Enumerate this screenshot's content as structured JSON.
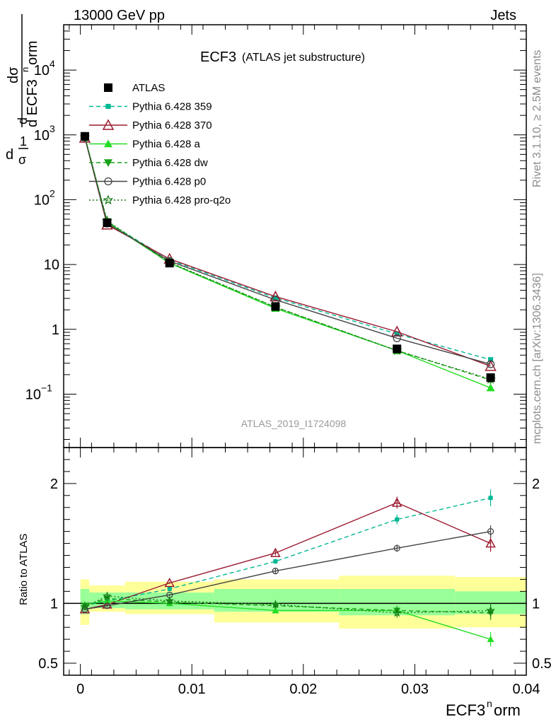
{
  "header": {
    "energy": "13000 GeV pp",
    "process": "Jets",
    "rivet": "Rivet 3.1.10, ≥ 2.5M events",
    "mcplots": "mcplots.cern.ch [arXiv:1306.3436]",
    "analysis": "ATLAS_2019_I1724098"
  },
  "title": {
    "main": "ECF3",
    "sub": "(ATLAS jet substructure)"
  },
  "labels": {
    "ylabel_num": "dσ",
    "ylabel_den": "d ECF3",
    "ylabel_sup": "n",
    "ylabel_tail": "orm",
    "ylabel_pre": "d",
    "ylabel_one": "1",
    "ylabel_sig": "σ",
    "ratio_ylabel": "Ratio to ATLAS",
    "xlabel_main": "ECF3",
    "xlabel_sup": "n",
    "xlabel_tail": "orm"
  },
  "chart_data": [
    {
      "type": "line",
      "panel": "main",
      "yscale": "log",
      "xlim": [
        -0.0015,
        0.04
      ],
      "ylim": [
        0.015,
        50000
      ],
      "x_ticks": [
        "0",
        "0.01",
        "0.02",
        "0.03",
        "0.04"
      ],
      "y_ticks": [
        {
          "v": 0.1,
          "base": "10",
          "exp": "−1"
        },
        {
          "v": 1,
          "base": "1",
          "exp": ""
        },
        {
          "v": 10,
          "base": "10",
          "exp": ""
        },
        {
          "v": 100,
          "base": "10",
          "exp": "2"
        },
        {
          "v": 1000,
          "base": "10",
          "exp": "3"
        },
        {
          "v": 10000,
          "base": "10",
          "exp": "4"
        }
      ],
      "x": [
        0.0004,
        0.0024,
        0.008,
        0.0175,
        0.0284,
        0.0368
      ],
      "series": [
        {
          "name": "ATLAS",
          "color": "#000000",
          "marker": "square",
          "dash": "none",
          "values": [
            950,
            44,
            10.5,
            2.25,
            0.5,
            0.18
          ]
        },
        {
          "name": "Pythia 6.428 359",
          "color": "#00b894",
          "marker": "smallsquare",
          "dash": "6,4",
          "values": [
            930,
            45,
            11.8,
            3.05,
            0.85,
            0.34
          ]
        },
        {
          "name": "Pythia 6.428 370",
          "color": "#9b1b30",
          "marker": "opentriangle",
          "dash": "none",
          "values": [
            900,
            41,
            12.2,
            3.2,
            0.92,
            0.27
          ]
        },
        {
          "name": "Pythia 6.428 a",
          "color": "#22dd22",
          "marker": "triangle",
          "dash": "none",
          "values": [
            940,
            45,
            10.5,
            2.1,
            0.47,
            0.125
          ]
        },
        {
          "name": "Pythia 6.428 dw",
          "color": "#19a019",
          "marker": "triangledown",
          "dash": "6,4",
          "values": [
            935,
            46,
            10.6,
            2.2,
            0.47,
            0.165
          ]
        },
        {
          "name": "Pythia 6.428 p0",
          "color": "#444444",
          "marker": "opencircle",
          "dash": "none",
          "values": [
            905,
            43,
            11.3,
            2.85,
            0.73,
            0.29
          ]
        },
        {
          "name": "Pythia 6.428 pro-q2o",
          "color": "#147a14",
          "marker": "star",
          "dash": "2,3",
          "values": [
            920,
            47,
            10.8,
            2.2,
            0.47,
            0.17
          ]
        }
      ]
    },
    {
      "type": "line",
      "panel": "ratio",
      "ylabel": "Ratio to ATLAS",
      "xlim": [
        -0.0015,
        0.04
      ],
      "ylim": [
        0.4,
        2.3
      ],
      "y_ticks": [
        "0.5",
        "1",
        "2"
      ],
      "y_tick_values": [
        0.5,
        1,
        2
      ],
      "x": [
        0.0004,
        0.0024,
        0.008,
        0.0175,
        0.0284,
        0.0368
      ],
      "bands": [
        {
          "x0": 0.0,
          "x1": 0.0008,
          "y_lo": 0.82,
          "y_hi": 1.2,
          "g_lo": 0.91,
          "g_hi": 1.12
        },
        {
          "x0": 0.0008,
          "x1": 0.004,
          "y_lo": 0.93,
          "y_hi": 1.15,
          "g_lo": 0.96,
          "g_hi": 1.09
        },
        {
          "x0": 0.004,
          "x1": 0.012,
          "y_lo": 0.91,
          "y_hi": 1.18,
          "g_lo": 0.95,
          "g_hi": 1.09
        },
        {
          "x0": 0.012,
          "x1": 0.0232,
          "y_lo": 0.84,
          "y_hi": 1.2,
          "g_lo": 0.93,
          "g_hi": 1.12
        },
        {
          "x0": 0.0232,
          "x1": 0.0336,
          "y_lo": 0.79,
          "y_hi": 1.23,
          "g_lo": 0.9,
          "g_hi": 1.12
        },
        {
          "x0": 0.0336,
          "x1": 0.04,
          "y_lo": 0.8,
          "y_hi": 1.22,
          "g_lo": 0.91,
          "g_hi": 1.1
        }
      ],
      "series": [
        {
          "name": "Pythia 6.428 359",
          "values": [
            0.98,
            1.02,
            1.12,
            1.35,
            1.7,
            1.88
          ],
          "err": [
            0.01,
            0.01,
            0.01,
            0.02,
            0.04,
            0.07
          ]
        },
        {
          "name": "Pythia 6.428 370",
          "values": [
            0.95,
            0.99,
            1.17,
            1.42,
            1.84,
            1.5
          ],
          "err": [
            0.01,
            0.01,
            0.01,
            0.02,
            0.05,
            0.07
          ]
        },
        {
          "name": "Pythia 6.428 a",
          "values": [
            0.99,
            1.02,
            1.0,
            0.94,
            0.94,
            0.7
          ],
          "err": [
            0.01,
            0.01,
            0.01,
            0.02,
            0.03,
            0.06
          ]
        },
        {
          "name": "Pythia 6.428 dw",
          "values": [
            0.98,
            1.04,
            1.01,
            0.98,
            0.94,
            0.92
          ],
          "err": [
            0.01,
            0.01,
            0.01,
            0.02,
            0.04,
            0.06
          ]
        },
        {
          "name": "Pythia 6.428 p0",
          "values": [
            0.95,
            0.98,
            1.07,
            1.27,
            1.46,
            1.6
          ],
          "err": [
            0.01,
            0.01,
            0.01,
            0.02,
            0.03,
            0.05
          ]
        },
        {
          "name": "Pythia 6.428 pro-q2o",
          "values": [
            0.97,
            1.06,
            1.02,
            0.99,
            0.92,
            0.94
          ],
          "err": [
            0.01,
            0.01,
            0.01,
            0.02,
            0.04,
            0.06
          ]
        }
      ],
      "band_colors": {
        "total": "#ffff9a",
        "stat": "#99ff99"
      }
    }
  ]
}
